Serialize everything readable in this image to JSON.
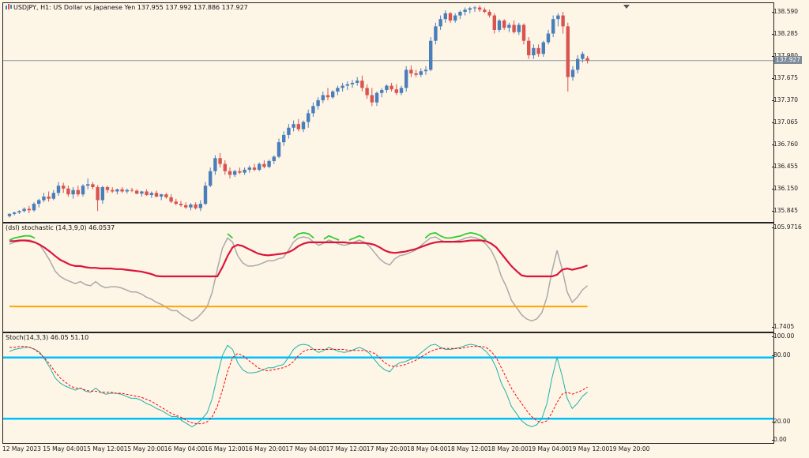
{
  "main": {
    "title": "USDJPY, H1:  US Dollar vs Japanese Yen  137.955 137.992 137.886 137.927",
    "last_price_label": "137.927",
    "last_price": 137.927,
    "price_ticks": [
      "138.590",
      "138.285",
      "137.980",
      "137.675",
      "137.370",
      "137.065",
      "136.760",
      "136.455",
      "136.150",
      "135.845"
    ],
    "colors": {
      "up": "#4a7ebb",
      "down": "#d9534f"
    }
  },
  "stochastic_dsl": {
    "title": "(dsl) stochastic (14,3,9,0) 46.0537",
    "scale_top": "105.9716",
    "scale_bottom": "1.7405",
    "colors": {
      "main": "#aaaaaa",
      "signal": "#dc143c",
      "upper": "#32cd32",
      "lower": "#ffa500"
    }
  },
  "stoch": {
    "title": "Stoch(14,3,3) 46.05 51.10",
    "levels": [
      "100.00",
      "80.00",
      "20.00",
      "0.00"
    ],
    "colors": {
      "main": "#20b2aa",
      "signal": "#ff0000",
      "level": "#00bfff"
    }
  },
  "time_axis": [
    "12 May 2023",
    "15 May 04:00",
    "15 May 12:00",
    "15 May 20:00",
    "16 May 04:00",
    "16 May 12:00",
    "16 May 20:00",
    "17 May 04:00",
    "17 May 12:00",
    "17 May 20:00",
    "18 May 04:00",
    "18 May 12:00",
    "18 May 20:00",
    "19 May 04:00",
    "19 May 12:00",
    "19 May 20:00"
  ],
  "chart_data": {
    "type": "candlestick",
    "symbol": "USDJPY",
    "timeframe": "H1",
    "ylim": [
      135.7,
      138.72
    ],
    "candles": [
      [
        135.78,
        135.82,
        135.76,
        135.81
      ],
      [
        135.81,
        135.84,
        135.79,
        135.83
      ],
      [
        135.83,
        135.86,
        135.81,
        135.85
      ],
      [
        135.85,
        135.9,
        135.83,
        135.88
      ],
      [
        135.88,
        135.92,
        135.82,
        135.86
      ],
      [
        135.86,
        135.97,
        135.84,
        135.95
      ],
      [
        135.95,
        136.02,
        135.9,
        136.0
      ],
      [
        136.0,
        136.1,
        135.97,
        136.05
      ],
      [
        136.05,
        136.12,
        135.98,
        136.02
      ],
      [
        136.02,
        136.14,
        136.0,
        136.1
      ],
      [
        136.1,
        136.25,
        136.06,
        136.2
      ],
      [
        136.2,
        136.24,
        136.1,
        136.16
      ],
      [
        136.16,
        136.2,
        136.05,
        136.08
      ],
      [
        136.08,
        136.18,
        136.02,
        136.14
      ],
      [
        136.14,
        136.2,
        136.05,
        136.08
      ],
      [
        136.08,
        136.22,
        136.05,
        136.2
      ],
      [
        136.2,
        136.3,
        136.15,
        136.22
      ],
      [
        136.22,
        136.25,
        136.15,
        136.18
      ],
      [
        136.18,
        136.21,
        135.85,
        136.0
      ],
      [
        136.0,
        136.2,
        135.95,
        136.18
      ],
      [
        136.18,
        136.2,
        136.1,
        136.14
      ],
      [
        136.14,
        136.18,
        136.1,
        136.12
      ],
      [
        136.12,
        136.16,
        136.08,
        136.15
      ],
      [
        136.15,
        136.18,
        136.1,
        136.12
      ],
      [
        136.12,
        136.16,
        136.09,
        136.14
      ],
      [
        136.14,
        136.17,
        136.11,
        136.13
      ],
      [
        136.13,
        136.15,
        136.08,
        136.09
      ],
      [
        136.09,
        136.13,
        136.05,
        136.12
      ],
      [
        136.12,
        136.15,
        136.06,
        136.07
      ],
      [
        136.07,
        136.12,
        136.03,
        136.1
      ],
      [
        136.1,
        136.13,
        136.04,
        136.05
      ],
      [
        136.05,
        136.09,
        136.0,
        136.08
      ],
      [
        136.08,
        136.1,
        136.02,
        136.04
      ],
      [
        136.04,
        136.08,
        135.96,
        135.98
      ],
      [
        135.98,
        136.02,
        135.93,
        135.95
      ],
      [
        135.95,
        135.99,
        135.91,
        135.93
      ],
      [
        135.93,
        135.97,
        135.88,
        135.9
      ],
      [
        135.9,
        135.96,
        135.86,
        135.94
      ],
      [
        135.94,
        135.97,
        135.87,
        135.89
      ],
      [
        135.89,
        136.0,
        135.85,
        135.95
      ],
      [
        135.95,
        136.25,
        135.93,
        136.2
      ],
      [
        136.2,
        136.45,
        136.18,
        136.4
      ],
      [
        136.4,
        136.62,
        136.35,
        136.58
      ],
      [
        136.58,
        136.65,
        136.45,
        136.5
      ],
      [
        136.5,
        136.55,
        136.35,
        136.4
      ],
      [
        136.4,
        136.45,
        136.3,
        136.35
      ],
      [
        136.35,
        136.42,
        136.32,
        136.4
      ],
      [
        136.4,
        136.45,
        136.36,
        136.38
      ],
      [
        136.38,
        136.45,
        136.35,
        136.42
      ],
      [
        136.42,
        136.48,
        136.38,
        136.45
      ],
      [
        136.45,
        136.5,
        136.4,
        136.42
      ],
      [
        136.42,
        136.52,
        136.4,
        136.5
      ],
      [
        136.5,
        136.55,
        136.44,
        136.46
      ],
      [
        136.46,
        136.56,
        136.44,
        136.54
      ],
      [
        136.54,
        136.62,
        136.5,
        136.6
      ],
      [
        136.6,
        136.85,
        136.58,
        136.8
      ],
      [
        136.8,
        136.95,
        136.75,
        136.9
      ],
      [
        136.9,
        137.05,
        136.85,
        137.0
      ],
      [
        137.0,
        137.1,
        136.95,
        137.05
      ],
      [
        137.05,
        137.12,
        136.95,
        136.98
      ],
      [
        136.98,
        137.1,
        136.94,
        137.08
      ],
      [
        137.08,
        137.25,
        137.0,
        137.2
      ],
      [
        137.2,
        137.35,
        137.15,
        137.3
      ],
      [
        137.3,
        137.42,
        137.25,
        137.38
      ],
      [
        137.38,
        137.5,
        137.34,
        137.45
      ],
      [
        137.45,
        137.55,
        137.38,
        137.42
      ],
      [
        137.42,
        137.52,
        137.4,
        137.5
      ],
      [
        137.5,
        137.58,
        137.45,
        137.55
      ],
      [
        137.55,
        137.62,
        137.5,
        137.58
      ],
      [
        137.58,
        137.64,
        137.52,
        137.6
      ],
      [
        137.6,
        137.66,
        137.55,
        137.62
      ],
      [
        137.62,
        137.7,
        137.58,
        137.65
      ],
      [
        137.65,
        137.72,
        137.5,
        137.55
      ],
      [
        137.55,
        137.6,
        137.4,
        137.45
      ],
      [
        137.45,
        137.55,
        137.3,
        137.35
      ],
      [
        137.35,
        137.5,
        137.3,
        137.48
      ],
      [
        137.48,
        137.55,
        137.42,
        137.52
      ],
      [
        137.52,
        137.6,
        137.48,
        137.58
      ],
      [
        137.58,
        137.62,
        137.5,
        137.53
      ],
      [
        137.53,
        137.6,
        137.45,
        137.48
      ],
      [
        137.48,
        137.58,
        137.45,
        137.55
      ],
      [
        137.55,
        137.85,
        137.5,
        137.8
      ],
      [
        137.8,
        137.86,
        137.7,
        137.75
      ],
      [
        137.75,
        137.8,
        137.7,
        137.73
      ],
      [
        137.73,
        137.82,
        137.7,
        137.78
      ],
      [
        137.78,
        137.85,
        137.73,
        137.8
      ],
      [
        137.8,
        138.25,
        137.78,
        138.2
      ],
      [
        138.2,
        138.45,
        138.15,
        138.4
      ],
      [
        138.4,
        138.55,
        138.35,
        138.5
      ],
      [
        138.5,
        138.62,
        138.45,
        138.58
      ],
      [
        138.58,
        138.6,
        138.45,
        138.48
      ],
      [
        138.48,
        138.58,
        138.45,
        138.55
      ],
      [
        138.55,
        138.62,
        138.5,
        138.6
      ],
      [
        138.6,
        138.66,
        138.55,
        138.63
      ],
      [
        138.63,
        138.67,
        138.58,
        138.65
      ],
      [
        138.65,
        138.68,
        138.6,
        138.66
      ],
      [
        138.66,
        138.69,
        138.6,
        138.63
      ],
      [
        138.63,
        138.66,
        138.58,
        138.6
      ],
      [
        138.6,
        138.63,
        138.52,
        138.55
      ],
      [
        138.55,
        138.58,
        138.3,
        138.35
      ],
      [
        138.35,
        138.5,
        138.32,
        138.48
      ],
      [
        138.48,
        138.5,
        138.35,
        138.38
      ],
      [
        138.38,
        138.45,
        138.32,
        138.42
      ],
      [
        138.42,
        138.48,
        138.3,
        138.32
      ],
      [
        138.32,
        138.45,
        138.28,
        138.42
      ],
      [
        138.42,
        138.44,
        138.15,
        138.2
      ],
      [
        138.2,
        138.25,
        137.95,
        138.0
      ],
      [
        138.0,
        138.15,
        137.95,
        138.1
      ],
      [
        138.1,
        138.15,
        137.98,
        138.02
      ],
      [
        138.02,
        138.2,
        137.98,
        138.18
      ],
      [
        138.18,
        138.35,
        138.15,
        138.3
      ],
      [
        138.3,
        138.55,
        138.25,
        138.5
      ],
      [
        138.5,
        138.58,
        138.4,
        138.55
      ],
      [
        138.55,
        138.6,
        138.3,
        138.4
      ],
      [
        138.4,
        138.45,
        137.5,
        137.7
      ],
      [
        137.7,
        137.85,
        137.65,
        137.8
      ],
      [
        137.8,
        138.0,
        137.75,
        137.95
      ],
      [
        137.95,
        138.05,
        137.9,
        138.02
      ],
      [
        137.96,
        137.99,
        137.886,
        137.927
      ]
    ],
    "panels": [
      {
        "title": "(dsl) stochastic (14,3,9,0)",
        "last_value": 46.0537,
        "ylim": [
          1.7405,
          105.9716
        ]
      },
      {
        "title": "Stoch(14,3,3)",
        "main_last": 46.05,
        "signal_last": 51.1,
        "levels": [
          80,
          20
        ],
        "ylim": [
          0,
          100
        ]
      }
    ],
    "stoch_main": [
      86,
      88,
      89,
      90,
      90,
      88,
      85,
      78,
      70,
      60,
      55,
      52,
      50,
      48,
      50,
      47,
      46,
      50,
      46,
      44,
      45,
      45,
      44,
      42,
      40,
      40,
      38,
      35,
      33,
      30,
      28,
      25,
      22,
      22,
      18,
      15,
      12,
      15,
      20,
      26,
      40,
      62,
      82,
      92,
      88,
      75,
      68,
      65,
      65,
      66,
      68,
      70,
      70,
      72,
      73,
      80,
      88,
      92,
      93,
      92,
      88,
      85,
      87,
      90,
      88,
      86,
      85,
      86,
      88,
      90,
      88,
      84,
      78,
      72,
      68,
      66,
      72,
      75,
      76,
      78,
      80,
      84,
      88,
      92,
      93,
      90,
      88,
      88,
      89,
      90,
      92,
      93,
      92,
      90,
      86,
      80,
      70,
      55,
      45,
      32,
      25,
      18,
      14,
      12,
      14,
      20,
      35,
      60,
      80,
      62,
      40,
      30,
      35,
      42,
      46
    ],
    "stoch_signal": [
      90,
      90,
      91,
      91,
      90,
      88,
      84,
      79,
      73,
      66,
      60,
      56,
      52,
      50,
      50,
      48,
      47,
      47,
      46,
      46,
      46,
      45,
      45,
      44,
      43,
      42,
      41,
      39,
      37,
      34,
      31,
      28,
      25,
      23,
      21,
      18,
      16,
      15,
      15,
      17,
      22,
      32,
      48,
      66,
      80,
      84,
      82,
      78,
      74,
      70,
      68,
      67,
      68,
      69,
      70,
      72,
      76,
      82,
      86,
      88,
      88,
      88,
      88,
      88,
      88,
      88,
      88,
      87,
      87,
      87,
      87,
      86,
      84,
      80,
      75,
      72,
      71,
      72,
      73,
      75,
      77,
      80,
      83,
      86,
      88,
      89,
      89,
      89,
      89,
      89,
      90,
      91,
      91,
      91,
      90,
      86,
      80,
      70,
      60,
      50,
      42,
      35,
      28,
      22,
      18,
      16,
      18,
      26,
      36,
      44,
      46,
      44,
      46,
      48,
      51
    ]
  }
}
